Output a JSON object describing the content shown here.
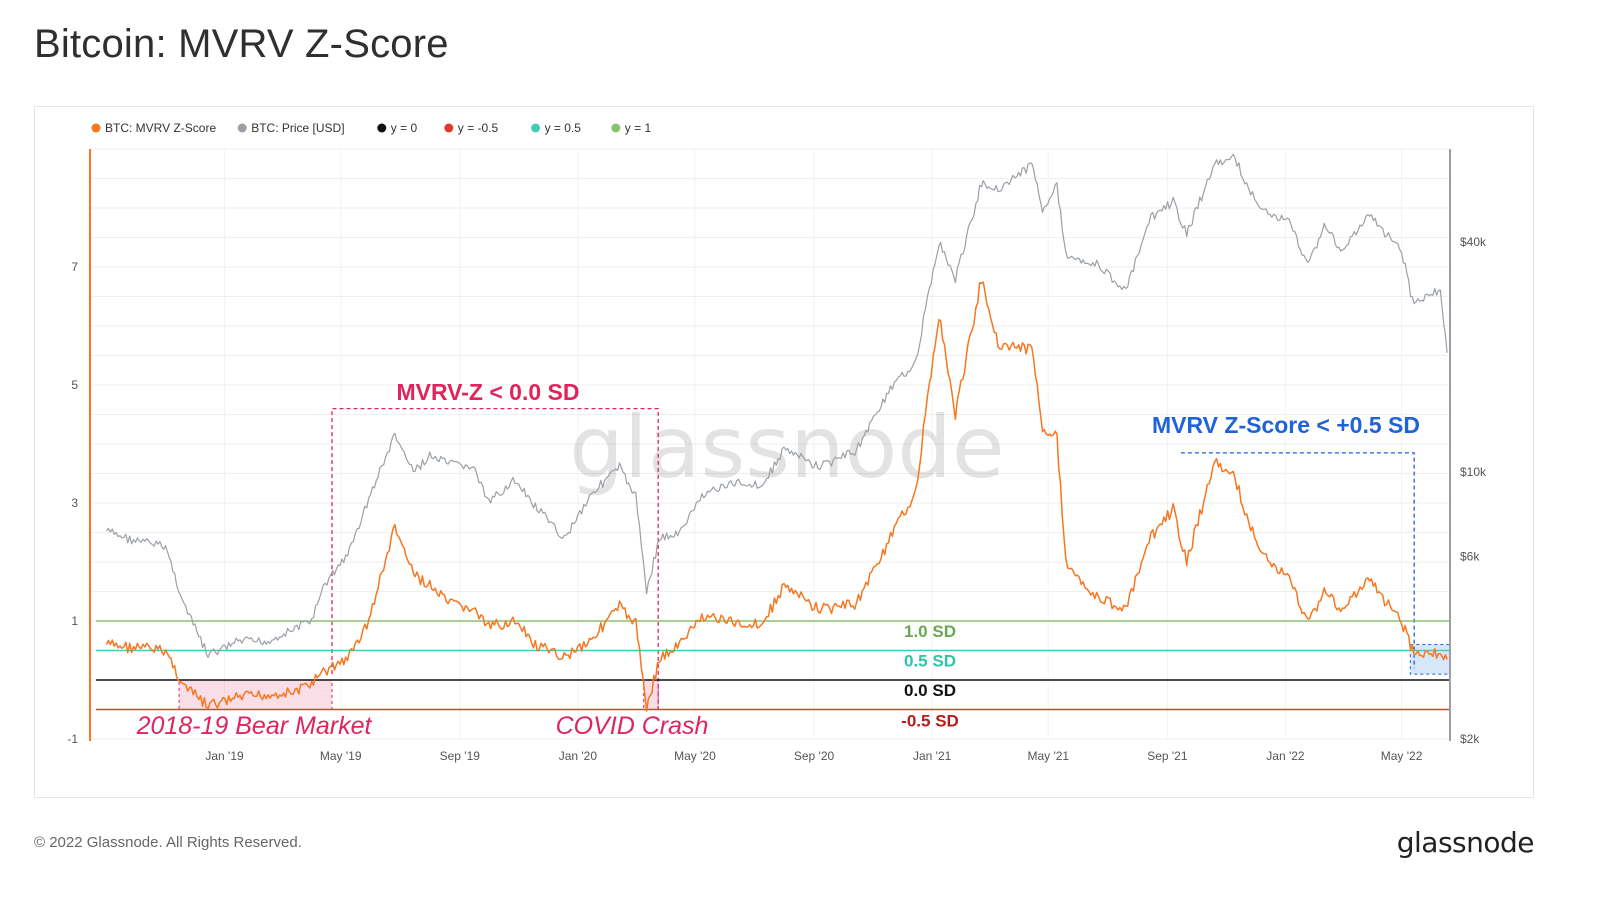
{
  "title": "Bitcoin: MVRV Z-Score",
  "footer": {
    "copyright": "© 2022 Glassnode. All Rights Reserved.",
    "logo": "glassnode"
  },
  "watermark": "glassnode",
  "colors": {
    "zscore": "#f7761f",
    "price": "#9aa0a6",
    "y0": "#111111",
    "yneg05": "#e03b2f",
    "y05": "#3fcfb4",
    "y1": "#8bc170",
    "pink": "#e0245e",
    "blue": "#1f63d8"
  },
  "chart_data": {
    "type": "line",
    "legend_position": "top-left",
    "legend": [
      {
        "label": "BTC: MVRV Z-Score",
        "color": "#f7761f"
      },
      {
        "label": "BTC: Price [USD]",
        "color": "#9aa0a6"
      },
      {
        "label": "y = 0",
        "color": "#111111"
      },
      {
        "label": "y = -0.5",
        "color": "#e03b2f"
      },
      {
        "label": "y = 0.5",
        "color": "#3fcfb4"
      },
      {
        "label": "y = 1",
        "color": "#8bc170"
      }
    ],
    "x_ticks": [
      "Jan '19",
      "May '19",
      "Sep '19",
      "Jan '20",
      "May '20",
      "Sep '20",
      "Jan '21",
      "May '21",
      "Sep '21",
      "Jan '22",
      "May '22"
    ],
    "y_left": {
      "ticks": [
        "-1",
        "1",
        "3",
        "5",
        "7"
      ],
      "range": [
        -1,
        9
      ]
    },
    "y_right": {
      "scale": "log",
      "ticks": [
        "$2k",
        "$6k",
        "$10k",
        "$40k"
      ],
      "range": [
        2000,
        70000
      ]
    },
    "grid": true,
    "reference_lines": [
      {
        "label": "1.0 SD",
        "value": 1.0,
        "color": "#8bc170"
      },
      {
        "label": "0.5 SD",
        "value": 0.5,
        "color": "#3fcfb4"
      },
      {
        "label": "0.0 SD",
        "value": 0.0,
        "color": "#111111"
      },
      {
        "label": "-0.5 SD",
        "value": -0.5,
        "color": "#e03b2f"
      }
    ],
    "series": [
      {
        "name": "BTC: MVRV Z-Score",
        "points": [
          [
            "2018-09-01",
            0.6
          ],
          [
            "2018-10-01",
            0.55
          ],
          [
            "2018-11-01",
            0.5
          ],
          [
            "2018-11-20",
            -0.1
          ],
          [
            "2018-12-15",
            -0.45
          ],
          [
            "2019-01-15",
            -0.3
          ],
          [
            "2019-02-15",
            -0.25
          ],
          [
            "2019-03-15",
            -0.2
          ],
          [
            "2019-04-01",
            -0.05
          ],
          [
            "2019-04-15",
            0.15
          ],
          [
            "2019-05-10",
            0.4
          ],
          [
            "2019-05-30",
            1.0
          ],
          [
            "2019-06-26",
            2.6
          ],
          [
            "2019-07-15",
            1.8
          ],
          [
            "2019-08-01",
            1.6
          ],
          [
            "2019-08-20",
            1.3
          ],
          [
            "2019-09-15",
            1.2
          ],
          [
            "2019-10-01",
            0.9
          ],
          [
            "2019-10-26",
            1.0
          ],
          [
            "2019-11-20",
            0.55
          ],
          [
            "2019-12-18",
            0.4
          ],
          [
            "2020-01-15",
            0.7
          ],
          [
            "2020-02-13",
            1.25
          ],
          [
            "2020-03-01",
            0.95
          ],
          [
            "2020-03-12",
            -0.45
          ],
          [
            "2020-03-25",
            0.35
          ],
          [
            "2020-04-15",
            0.6
          ],
          [
            "2020-05-10",
            1.1
          ],
          [
            "2020-06-15",
            0.95
          ],
          [
            "2020-07-10",
            0.95
          ],
          [
            "2020-08-01",
            1.6
          ],
          [
            "2020-09-05",
            1.2
          ],
          [
            "2020-10-15",
            1.3
          ],
          [
            "2020-11-15",
            2.3
          ],
          [
            "2020-12-15",
            3.2
          ],
          [
            "2021-01-08",
            6.2
          ],
          [
            "2021-01-25",
            4.5
          ],
          [
            "2021-02-21",
            6.8
          ],
          [
            "2021-03-10",
            5.7
          ],
          [
            "2021-04-14",
            5.6
          ],
          [
            "2021-04-25",
            4.3
          ],
          [
            "2021-05-10",
            4.1
          ],
          [
            "2021-05-19",
            2.0
          ],
          [
            "2021-06-20",
            1.4
          ],
          [
            "2021-07-20",
            1.2
          ],
          [
            "2021-08-15",
            2.4
          ],
          [
            "2021-09-07",
            2.9
          ],
          [
            "2021-09-21",
            2.0
          ],
          [
            "2021-10-20",
            3.7
          ],
          [
            "2021-11-10",
            3.4
          ],
          [
            "2021-12-04",
            2.2
          ],
          [
            "2022-01-05",
            1.7
          ],
          [
            "2022-01-24",
            1.0
          ],
          [
            "2022-02-10",
            1.5
          ],
          [
            "2022-03-01",
            1.2
          ],
          [
            "2022-03-29",
            1.7
          ],
          [
            "2022-05-01",
            1.0
          ],
          [
            "2022-05-12",
            0.5
          ],
          [
            "2022-06-10",
            0.45
          ],
          [
            "2022-06-17",
            0.35
          ]
        ]
      },
      {
        "name": "BTC: Price [USD]",
        "points": [
          [
            "2018-09-01",
            7000
          ],
          [
            "2018-10-01",
            6600
          ],
          [
            "2018-11-01",
            6400
          ],
          [
            "2018-11-20",
            4500
          ],
          [
            "2018-12-15",
            3300
          ],
          [
            "2019-01-15",
            3600
          ],
          [
            "2019-02-15",
            3600
          ],
          [
            "2019-03-15",
            3900
          ],
          [
            "2019-04-01",
            4100
          ],
          [
            "2019-04-15",
            5100
          ],
          [
            "2019-05-10",
            6200
          ],
          [
            "2019-05-30",
            8500
          ],
          [
            "2019-06-26",
            12500
          ],
          [
            "2019-07-15",
            10000
          ],
          [
            "2019-08-01",
            11000
          ],
          [
            "2019-08-20",
            10500
          ],
          [
            "2019-09-15",
            10300
          ],
          [
            "2019-10-01",
            8300
          ],
          [
            "2019-10-26",
            9500
          ],
          [
            "2019-11-20",
            8000
          ],
          [
            "2019-12-18",
            6700
          ],
          [
            "2020-01-15",
            8800
          ],
          [
            "2020-02-13",
            10300
          ],
          [
            "2020-03-01",
            8600
          ],
          [
            "2020-03-12",
            4900
          ],
          [
            "2020-03-25",
            6700
          ],
          [
            "2020-04-15",
            6900
          ],
          [
            "2020-05-10",
            8800
          ],
          [
            "2020-06-15",
            9400
          ],
          [
            "2020-07-10",
            9200
          ],
          [
            "2020-08-01",
            11500
          ],
          [
            "2020-09-05",
            10300
          ],
          [
            "2020-10-15",
            11400
          ],
          [
            "2020-11-15",
            16000
          ],
          [
            "2020-12-15",
            19500
          ],
          [
            "2021-01-08",
            40000
          ],
          [
            "2021-01-25",
            32000
          ],
          [
            "2021-02-21",
            57000
          ],
          [
            "2021-03-10",
            55000
          ],
          [
            "2021-04-14",
            63500
          ],
          [
            "2021-04-25",
            49000
          ],
          [
            "2021-05-10",
            56000
          ],
          [
            "2021-05-19",
            37000
          ],
          [
            "2021-06-20",
            35000
          ],
          [
            "2021-07-20",
            29800
          ],
          [
            "2021-08-15",
            46000
          ],
          [
            "2021-09-07",
            51000
          ],
          [
            "2021-09-21",
            42000
          ],
          [
            "2021-10-20",
            64000
          ],
          [
            "2021-11-10",
            66000
          ],
          [
            "2021-12-04",
            49000
          ],
          [
            "2022-01-05",
            45000
          ],
          [
            "2022-01-24",
            35000
          ],
          [
            "2022-02-10",
            44000
          ],
          [
            "2022-03-01",
            38000
          ],
          [
            "2022-03-29",
            47000
          ],
          [
            "2022-05-01",
            38000
          ],
          [
            "2022-05-12",
            28000
          ],
          [
            "2022-06-10",
            30000
          ],
          [
            "2022-06-17",
            20500
          ]
        ]
      }
    ],
    "annotations": [
      {
        "text": "MVRV-Z < 0.0 SD",
        "color": "#e0245e"
      },
      {
        "text": "MVRV Z-Score < +0.5 SD",
        "color": "#1f63d8"
      },
      {
        "text": "2018-19 Bear Market",
        "color": "#e0245e"
      },
      {
        "text": "COVID Crash",
        "color": "#e0245e"
      }
    ]
  }
}
